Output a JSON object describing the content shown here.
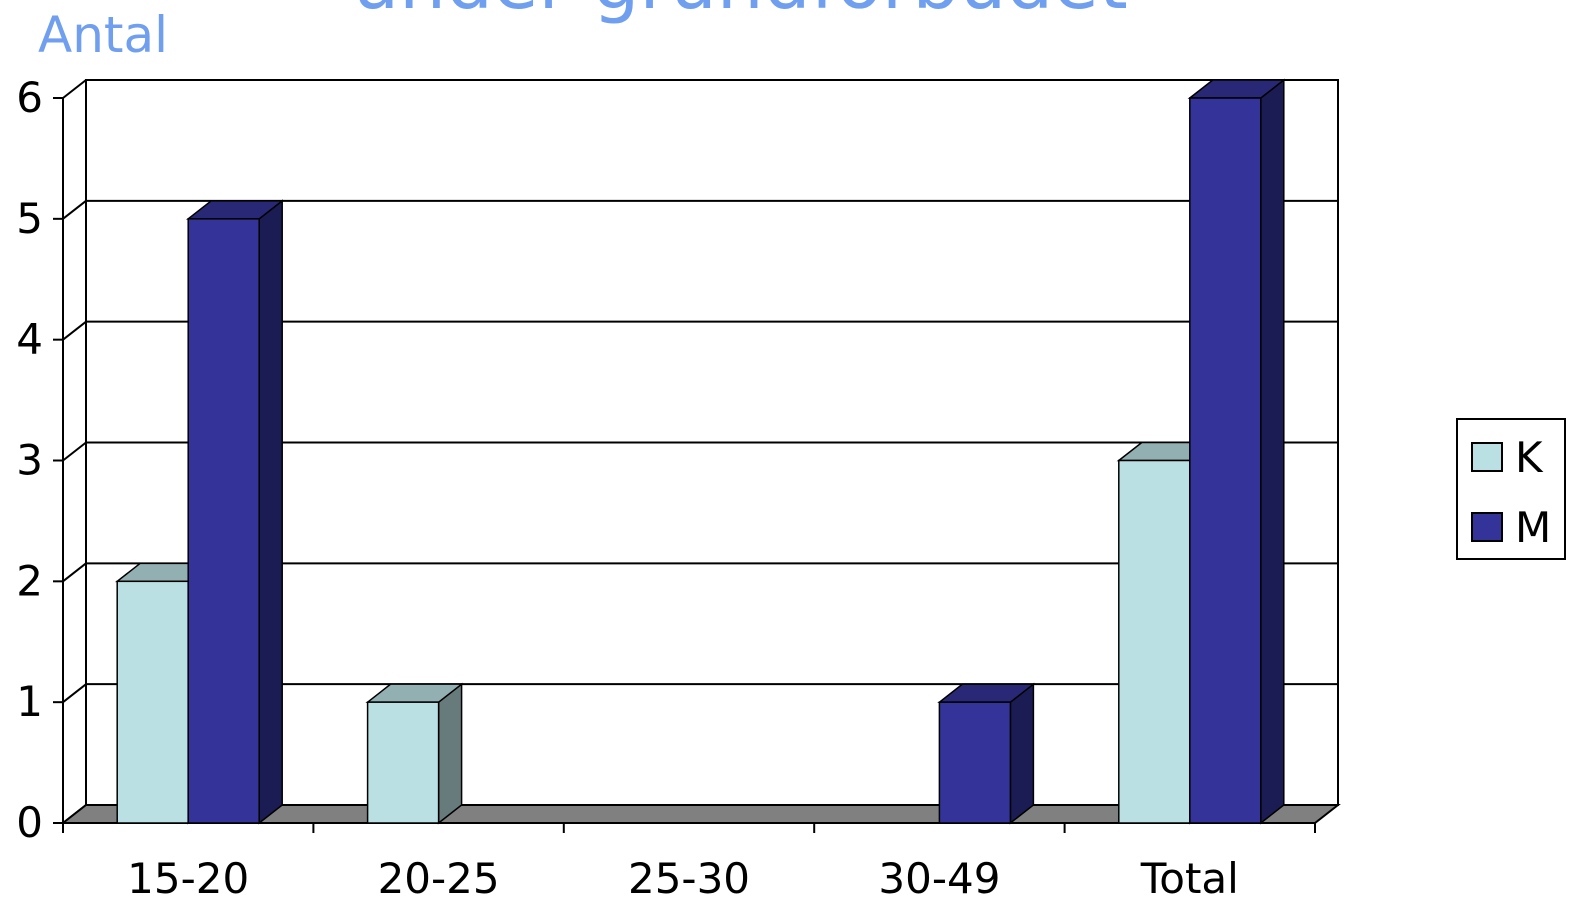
{
  "chart_data": {
    "type": "bar",
    "title": "under grundförbudet",
    "ylabel": "Antal",
    "xlabel": "",
    "categories": [
      "15-20",
      "20-25",
      "25-30",
      "30-49",
      "Total"
    ],
    "series": [
      {
        "name": "K",
        "values": [
          2,
          1,
          0,
          0,
          3
        ],
        "color": "#bbe0e3"
      },
      {
        "name": "M",
        "values": [
          5,
          0,
          0,
          1,
          6
        ],
        "color": "#333399"
      }
    ],
    "ylim": [
      0,
      6
    ],
    "yticks": [
      0,
      1,
      2,
      3,
      4,
      5,
      6
    ],
    "grid": true,
    "legend_position": "right",
    "floor_color": "#808080"
  }
}
